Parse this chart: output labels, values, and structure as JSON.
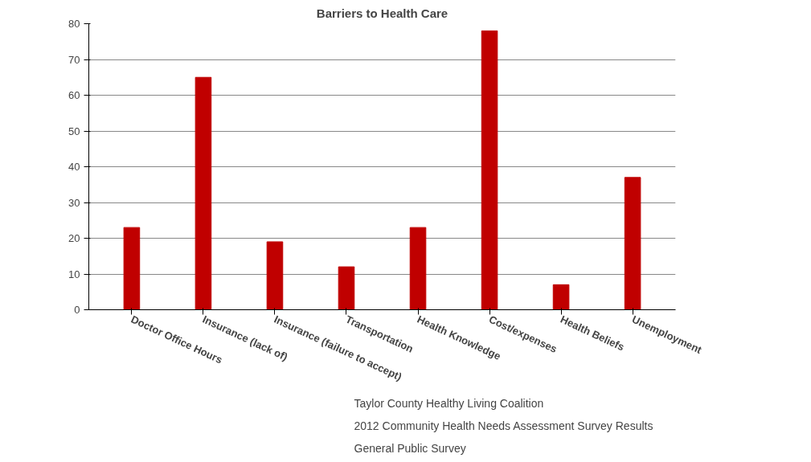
{
  "chart_data": {
    "type": "bar",
    "title": "Barriers to Health Care",
    "categories": [
      "Doctor Office Hours",
      "Insurance (lack of)",
      "Insurance (failure to accept)",
      "Transportation",
      "Health Knowledge",
      "Cost/expenses",
      "Health Beliefs",
      "Unemployment"
    ],
    "values": [
      23,
      65,
      19,
      12,
      23,
      78,
      7,
      37
    ],
    "color": "#c00000",
    "ylim": [
      0,
      80
    ],
    "yticks": [
      0,
      10,
      20,
      30,
      40,
      50,
      60,
      70,
      80
    ],
    "grid": "y",
    "annotations": [
      "Taylor County Healthy Living Coalition",
      "2012 Community Health Needs Assessment Survey Results",
      "General Public Survey"
    ]
  }
}
